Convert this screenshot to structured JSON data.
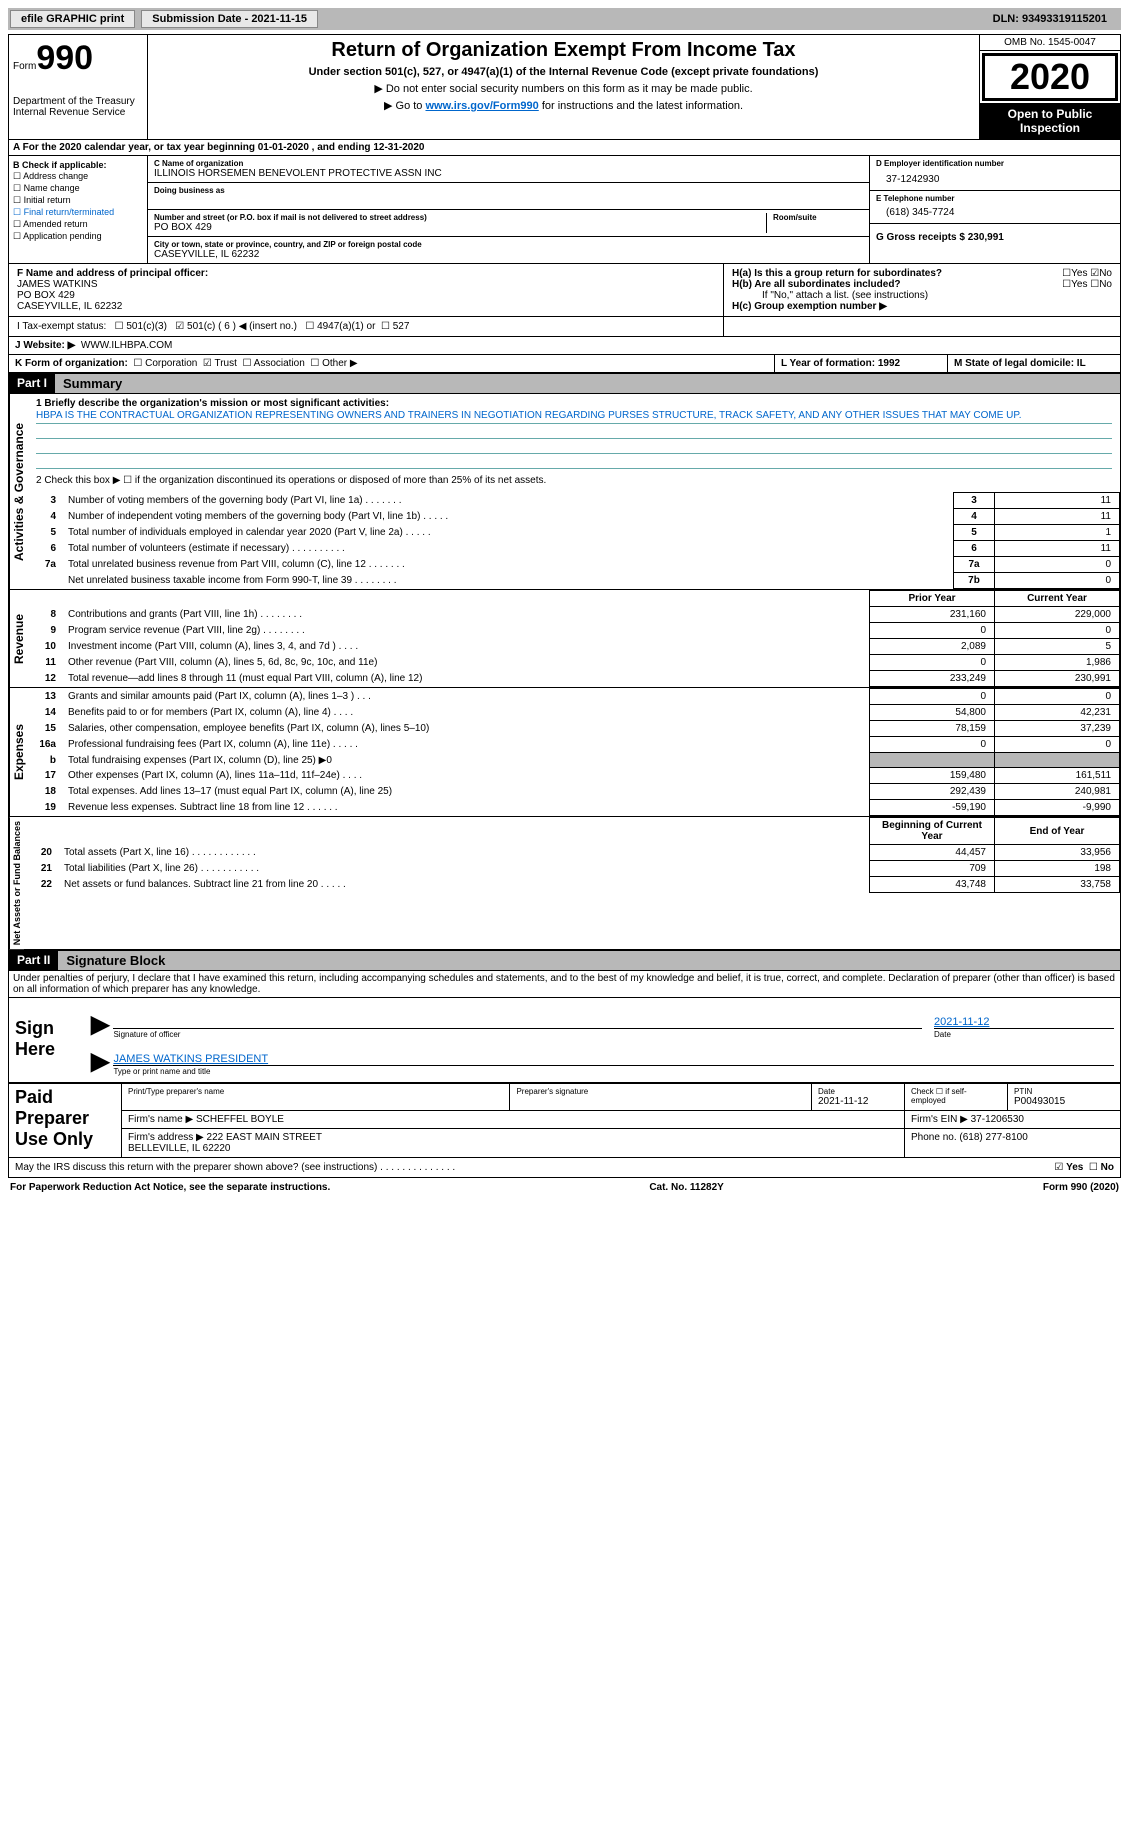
{
  "topbar": {
    "efile": "efile GRAPHIC print",
    "submission_label": "Submission Date - 2021-11-15",
    "dln_label": "DLN: 93493319115201"
  },
  "header": {
    "form_word": "Form",
    "form_number": "990",
    "dept": "Department of the Treasury\nInternal Revenue Service",
    "title": "Return of Organization Exempt From Income Tax",
    "subtitle": "Under section 501(c), 527, or 4947(a)(1) of the Internal Revenue Code (except private foundations)",
    "instr1": "▶ Do not enter social security numbers on this form as it may be made public.",
    "instr2_pre": "▶ Go to ",
    "instr2_link": "www.irs.gov/Form990",
    "instr2_post": " for instructions and the latest information.",
    "omb": "OMB No. 1545-0047",
    "year": "2020",
    "open": "Open to Public Inspection"
  },
  "row_a": "A For the 2020 calendar year, or tax year beginning 01-01-2020    , and ending 12-31-2020",
  "col_b": {
    "title": "B Check if applicable:",
    "items": [
      "Address change",
      "Name change",
      "Initial return",
      "Final return/terminated",
      "Amended return",
      "Application pending"
    ]
  },
  "entity": {
    "c_label": "C Name of organization",
    "c_name": "ILLINOIS HORSEMEN BENEVOLENT PROTECTIVE ASSN INC",
    "dba_label": "Doing business as",
    "addr_label": "Number and street (or P.O. box if mail is not delivered to street address)",
    "room_label": "Room/suite",
    "addr": "PO BOX 429",
    "city_label": "City or town, state or province, country, and ZIP or foreign postal code",
    "city": "CASEYVILLE, IL  62232"
  },
  "right_col": {
    "d_label": "D Employer identification number",
    "d_val": "37-1242930",
    "e_label": "E Telephone number",
    "e_val": "(618) 345-7724",
    "g_label": "G Gross receipts $ 230,991"
  },
  "f_block": {
    "label": "F Name and address of principal officer:",
    "name": "JAMES WATKINS",
    "addr1": "PO BOX 429",
    "addr2": "CASEYVILLE, IL  62232"
  },
  "h_block": {
    "ha": "H(a)  Is this a group return for subordinates?",
    "hb": "H(b)  Are all subordinates included?",
    "hb_note": "If \"No,\" attach a list. (see instructions)",
    "hc": "H(c)  Group exemption number ▶",
    "yes": "Yes",
    "no": "No"
  },
  "row_i": {
    "label": "I    Tax-exempt status:",
    "opt1": "501(c)(3)",
    "opt2": "501(c) ( 6 ) ◀ (insert no.)",
    "opt3": "4947(a)(1) or",
    "opt4": "527"
  },
  "row_j": {
    "label": "J    Website: ▶",
    "val": "WWW.ILHBPA.COM"
  },
  "row_k": {
    "label": "K Form of organization:",
    "opts": [
      "Corporation",
      "Trust",
      "Association",
      "Other ▶"
    ],
    "l": "L Year of formation: 1992",
    "m": "M State of legal domicile: IL"
  },
  "part1": {
    "hdr": "Part I",
    "title": "Summary"
  },
  "governance": {
    "label": "Activities & Governance",
    "line1_label": "1   Briefly describe the organization's mission or most significant activities:",
    "mission": "HBPA IS THE CONTRACTUAL ORGANIZATION REPRESENTING OWNERS AND TRAINERS IN NEGOTIATION REGARDING PURSES STRUCTURE, TRACK SAFETY, AND ANY OTHER ISSUES THAT MAY COME UP.",
    "line2": "2   Check this box ▶ ☐  if the organization discontinued its operations or disposed of more than 25% of its net assets.",
    "rows": [
      {
        "n": "3",
        "desc": "Number of voting members of the governing body (Part VI, line 1a)   .    .    .    .    .    .    .",
        "box": "3",
        "val": "11"
      },
      {
        "n": "4",
        "desc": "Number of independent voting members of the governing body (Part VI, line 1b)    .    .    .    .    .",
        "box": "4",
        "val": "11"
      },
      {
        "n": "5",
        "desc": "Total number of individuals employed in calendar year 2020 (Part V, line 2a)    .    .    .    .    .",
        "box": "5",
        "val": "1"
      },
      {
        "n": "6",
        "desc": "Total number of volunteers (estimate if necessary)    .    .    .    .    .    .    .    .    .    .",
        "box": "6",
        "val": "11"
      },
      {
        "n": "7a",
        "desc": "Total unrelated business revenue from Part VIII, column (C), line 12    .    .    .    .    .    .    .",
        "box": "7a",
        "val": "0"
      },
      {
        "n": "",
        "desc": "Net unrelated business taxable income from Form 990-T, line 39    .    .    .    .    .    .    .    .",
        "box": "7b",
        "val": "0"
      }
    ]
  },
  "two_col": {
    "prior_hdr": "Prior Year",
    "current_hdr": "Current Year",
    "begin_hdr": "Beginning of Current Year",
    "end_hdr": "End of Year"
  },
  "revenue": {
    "label": "Revenue",
    "rows": [
      {
        "n": "8",
        "desc": "Contributions and grants (Part VIII, line 1h)    .    .    .    .    .    .    .    .",
        "prior": "231,160",
        "cur": "229,000"
      },
      {
        "n": "9",
        "desc": "Program service revenue (Part VIII, line 2g)    .    .    .    .    .    .    .    .",
        "prior": "0",
        "cur": "0"
      },
      {
        "n": "10",
        "desc": "Investment income (Part VIII, column (A), lines 3, 4, and 7d )    .    .    .    .",
        "prior": "2,089",
        "cur": "5"
      },
      {
        "n": "11",
        "desc": "Other revenue (Part VIII, column (A), lines 5, 6d, 8c, 9c, 10c, and 11e)",
        "prior": "0",
        "cur": "1,986"
      },
      {
        "n": "12",
        "desc": "Total revenue—add lines 8 through 11 (must equal Part VIII, column (A), line 12)",
        "prior": "233,249",
        "cur": "230,991"
      }
    ]
  },
  "expenses": {
    "label": "Expenses",
    "rows": [
      {
        "n": "13",
        "desc": "Grants and similar amounts paid (Part IX, column (A), lines 1–3 )   .    .    .",
        "prior": "0",
        "cur": "0"
      },
      {
        "n": "14",
        "desc": "Benefits paid to or for members (Part IX, column (A), line 4)    .    .    .    .",
        "prior": "54,800",
        "cur": "42,231"
      },
      {
        "n": "15",
        "desc": "Salaries, other compensation, employee benefits (Part IX, column (A), lines 5–10)",
        "prior": "78,159",
        "cur": "37,239"
      },
      {
        "n": "16a",
        "desc": "Professional fundraising fees (Part IX, column (A), line 11e)    .    .    .    .    .",
        "prior": "0",
        "cur": "0"
      },
      {
        "n": "b",
        "desc": "Total fundraising expenses (Part IX, column (D), line 25) ▶0",
        "prior": "",
        "cur": "",
        "gray": true
      },
      {
        "n": "17",
        "desc": "Other expenses (Part IX, column (A), lines 11a–11d, 11f–24e)    .    .    .    .",
        "prior": "159,480",
        "cur": "161,511"
      },
      {
        "n": "18",
        "desc": "Total expenses. Add lines 13–17 (must equal Part IX, column (A), line 25)",
        "prior": "292,439",
        "cur": "240,981"
      },
      {
        "n": "19",
        "desc": "Revenue less expenses. Subtract line 18 from line 12    .    .    .    .    .    .",
        "prior": "-59,190",
        "cur": "-9,990"
      }
    ]
  },
  "netassets": {
    "label": "Net Assets or Fund Balances",
    "rows": [
      {
        "n": "20",
        "desc": "Total assets (Part X, line 16)    .    .    .    .    .    .    .    .    .    .    .    .",
        "prior": "44,457",
        "cur": "33,956"
      },
      {
        "n": "21",
        "desc": "Total liabilities (Part X, line 26)    .    .    .    .    .    .    .    .    .    .    .",
        "prior": "709",
        "cur": "198"
      },
      {
        "n": "22",
        "desc": "Net assets or fund balances. Subtract line 21 from line 20    .    .    .    .    .",
        "prior": "43,748",
        "cur": "33,758"
      }
    ]
  },
  "part2": {
    "hdr": "Part II",
    "title": "Signature Block",
    "penalty": "Under penalties of perjury, I declare that I have examined this return, including accompanying schedules and statements, and to the best of my knowledge and belief, it is true, correct, and complete. Declaration of preparer (other than officer) is based on all information of which preparer has any knowledge."
  },
  "sign": {
    "here": "Sign Here",
    "sig_label": "Signature of officer",
    "date_label": "Date",
    "date_val": "2021-11-12",
    "name": "JAMES WATKINS PRESIDENT",
    "name_label": "Type or print name and title"
  },
  "preparer": {
    "here": "Paid Preparer Use Only",
    "print_label": "Print/Type preparer's name",
    "sig_label": "Preparer's signature",
    "date_label": "Date",
    "date_val": "2021-11-12",
    "check_label": "Check ☐ if self-employed",
    "ptin_label": "PTIN",
    "ptin_val": "P00493015",
    "firm_name_label": "Firm's name    ▶",
    "firm_name": "SCHEFFEL BOYLE",
    "firm_ein_label": "Firm's EIN ▶",
    "firm_ein": "37-1206530",
    "firm_addr_label": "Firm's address ▶",
    "firm_addr": "222 EAST MAIN STREET\nBELLEVILLE, IL  62220",
    "phone_label": "Phone no.",
    "phone": "(618) 277-8100"
  },
  "discuss": "May the IRS discuss this return with the preparer shown above? (see instructions)    .    .    .    .    .    .    .    .    .    .    .    .    .    .",
  "footer": {
    "left": "For Paperwork Reduction Act Notice, see the separate instructions.",
    "mid": "Cat. No. 11282Y",
    "right": "Form 990 (2020)"
  }
}
